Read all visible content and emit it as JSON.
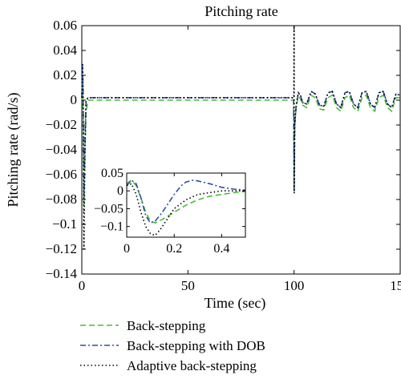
{
  "chart_data": [
    {
      "type": "line",
      "title": "Pitching rate",
      "xlabel": "Time (sec)",
      "ylabel": "Pitching rate (rad/s)",
      "xlim": [
        0,
        150
      ],
      "ylim": [
        -0.14,
        0.06
      ],
      "xticks": [
        0,
        50,
        100,
        150
      ],
      "xtick_labels": [
        "0",
        "50",
        "100",
        "150"
      ],
      "yticks": [
        0.06,
        0.04,
        0.02,
        0,
        -0.02,
        -0.04,
        -0.06,
        -0.08,
        -0.1,
        -0.12,
        -0.14
      ],
      "ytick_labels": [
        "0.06",
        "0.04",
        "0.02",
        "0",
        "−0.02",
        "−0.04",
        "−0.06",
        "−0.08",
        "−0.1",
        "−0.12",
        "−0.14"
      ],
      "grid": false,
      "legend_position": "below",
      "series": [
        {
          "name": "Back-stepping",
          "color": "#4dbb3c",
          "dash": "dashed",
          "x": [
            0,
            0.3,
            0.6,
            1,
            1.5,
            2,
            3,
            5,
            99.8,
            100,
            100.3,
            101,
            102,
            103,
            104,
            106,
            108,
            110,
            112,
            114,
            116,
            118,
            120,
            122,
            124,
            126,
            128,
            130,
            132,
            134,
            136,
            138,
            140,
            142,
            144,
            146,
            148,
            150
          ],
          "y": [
            0,
            0.02,
            -0.01,
            -0.09,
            -0.04,
            -0.01,
            0,
            0,
            0,
            -0.075,
            -0.02,
            -0.005,
            0.003,
            0.001,
            -0.004,
            -0.006,
            0.004,
            0.002,
            -0.007,
            -0.008,
            0.002,
            0.004,
            -0.006,
            -0.009,
            0.002,
            0.004,
            -0.006,
            -0.009,
            0.002,
            0.004,
            -0.006,
            -0.009,
            0.002,
            0.004,
            -0.006,
            -0.009,
            0.002,
            0.002
          ]
        },
        {
          "name": "Back-stepping with DOB",
          "color": "#2e4fa3",
          "dash": "dashdot",
          "x": [
            0,
            0.3,
            0.6,
            1,
            1.5,
            2,
            3,
            5,
            99.8,
            100,
            100.3,
            101,
            102,
            103,
            104,
            106,
            108,
            110,
            112,
            114,
            116,
            118,
            120,
            122,
            124,
            126,
            128,
            130,
            132,
            134,
            136,
            138,
            140,
            142,
            144,
            146,
            148,
            150
          ],
          "y": [
            0.002,
            0.03,
            0.01,
            -0.08,
            -0.03,
            0,
            0.002,
            0.002,
            0.002,
            -0.072,
            -0.02,
            -0.004,
            0.006,
            0.004,
            -0.002,
            -0.003,
            0.007,
            0.005,
            -0.004,
            -0.005,
            0.006,
            0.007,
            -0.003,
            -0.006,
            0.006,
            0.007,
            -0.003,
            -0.006,
            0.006,
            0.007,
            -0.003,
            -0.006,
            0.006,
            0.007,
            -0.003,
            -0.006,
            0.005,
            0.004
          ]
        },
        {
          "name": "Adaptive back-stepping",
          "color": "#000000",
          "dash": "dotted",
          "x": [
            0,
            0.3,
            0.6,
            1,
            1.5,
            2,
            3,
            5,
            99.9,
            100,
            100.1,
            100.3,
            101,
            102,
            103,
            104,
            106,
            108,
            110,
            112,
            114,
            116,
            118,
            120,
            122,
            124,
            126,
            128,
            130,
            132,
            134,
            136,
            138,
            140,
            142,
            144,
            146,
            148,
            150
          ],
          "y": [
            0.002,
            0.03,
            0.01,
            -0.12,
            -0.04,
            0,
            0.002,
            0.002,
            0.002,
            0.06,
            -0.075,
            -0.02,
            -0.004,
            0.006,
            0.004,
            -0.002,
            -0.003,
            0.007,
            0.005,
            -0.004,
            -0.005,
            0.006,
            0.007,
            -0.003,
            -0.006,
            0.006,
            0.007,
            -0.003,
            -0.006,
            0.006,
            0.007,
            -0.003,
            -0.006,
            0.006,
            0.007,
            -0.003,
            -0.006,
            0.005,
            0.004
          ]
        }
      ]
    },
    {
      "type": "line",
      "title": "",
      "xlabel": "",
      "ylabel": "",
      "xlim": [
        0,
        0.5
      ],
      "ylim": [
        -0.13,
        0.05
      ],
      "xticks": [
        0,
        0.2,
        0.4
      ],
      "xtick_labels": [
        "0",
        "0.2",
        "0.4"
      ],
      "yticks": [
        0.05,
        0,
        -0.05,
        -0.1
      ],
      "ytick_labels": [
        "0.05",
        "0",
        "−0.05",
        "−0.1"
      ],
      "grid": false,
      "series": [
        {
          "name": "Back-stepping",
          "color": "#4dbb3c",
          "dash": "dashed",
          "x": [
            0,
            0.02,
            0.04,
            0.06,
            0.08,
            0.1,
            0.12,
            0.15,
            0.2,
            0.25,
            0.3,
            0.35,
            0.4,
            0.45,
            0.5
          ],
          "y": [
            0.02,
            0.03,
            0.015,
            -0.02,
            -0.06,
            -0.085,
            -0.09,
            -0.08,
            -0.06,
            -0.04,
            -0.025,
            -0.015,
            -0.01,
            -0.005,
            -0.002
          ]
        },
        {
          "name": "Back-stepping with DOB",
          "color": "#2e4fa3",
          "dash": "dashdot",
          "x": [
            0,
            0.02,
            0.04,
            0.06,
            0.08,
            0.1,
            0.12,
            0.15,
            0.18,
            0.2,
            0.23,
            0.25,
            0.28,
            0.3,
            0.35,
            0.4,
            0.45,
            0.5
          ],
          "y": [
            0.015,
            0.03,
            0.02,
            -0.02,
            -0.07,
            -0.09,
            -0.085,
            -0.06,
            -0.03,
            -0.01,
            0.015,
            0.025,
            0.03,
            0.028,
            0.02,
            0.01,
            0.005,
            0.002
          ]
        },
        {
          "name": "Adaptive back-stepping",
          "color": "#000000",
          "dash": "dotted",
          "x": [
            0,
            0.02,
            0.04,
            0.06,
            0.08,
            0.1,
            0.12,
            0.14,
            0.16,
            0.18,
            0.2,
            0.25,
            0.3,
            0.35,
            0.4,
            0.45,
            0.5
          ],
          "y": [
            0.015,
            0.02,
            -0.01,
            -0.06,
            -0.1,
            -0.12,
            -0.125,
            -0.11,
            -0.09,
            -0.07,
            -0.05,
            -0.025,
            -0.01,
            -0.005,
            0,
            0,
            0
          ]
        }
      ]
    }
  ]
}
